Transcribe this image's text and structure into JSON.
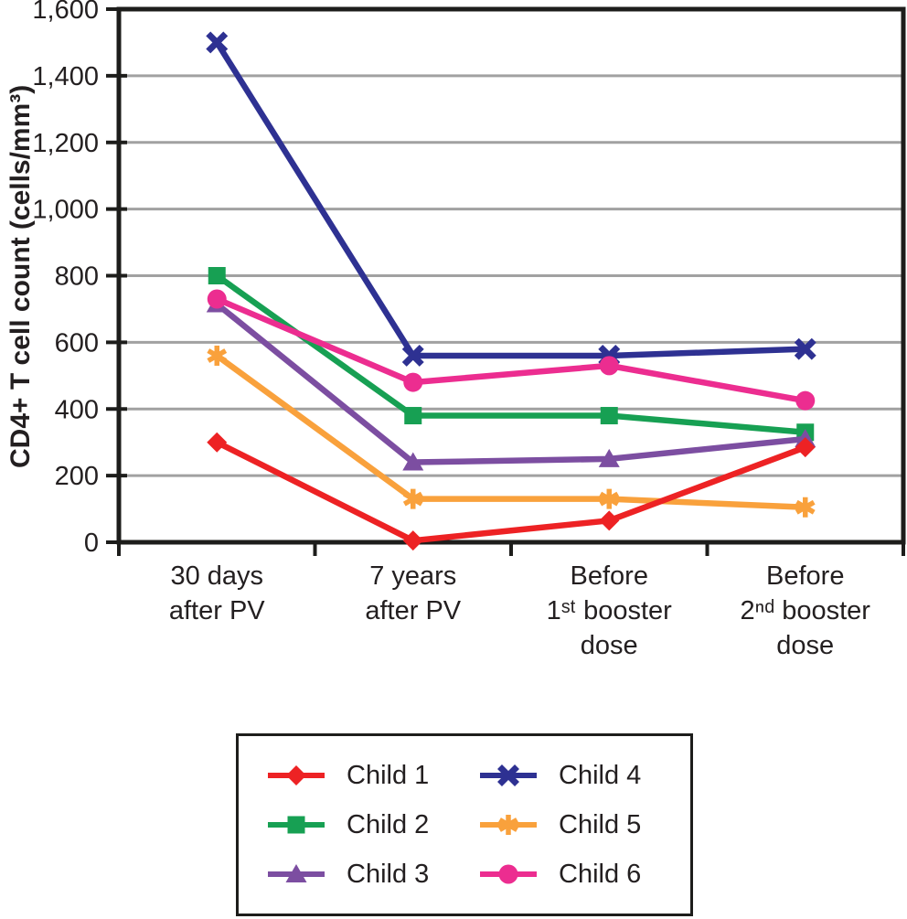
{
  "chart_data": {
    "type": "line",
    "title": "",
    "xlabel": "",
    "ylabel": "CD4+ T cell count (cells/mm³)",
    "ylim": [
      0,
      1600
    ],
    "ytick_step": 200,
    "ytick_labels": [
      "0",
      "200",
      "400",
      "600",
      "800",
      "1,000",
      "1,200",
      "1,400",
      "1,600"
    ],
    "grid": true,
    "legend_position": "bottom boxed, 2 columns",
    "categories": [
      "30 days after PV",
      "7 years after PV",
      "Before 1ˢᵗ booster dose",
      "Before 2ⁿᵈ booster dose"
    ],
    "category_label_lines": [
      [
        "30 days",
        "after PV"
      ],
      [
        "7 years",
        "after PV"
      ],
      [
        "Before",
        "1ˢᵗ booster",
        "dose"
      ],
      [
        "Before",
        "2ⁿᵈ booster",
        "dose"
      ]
    ],
    "series": [
      {
        "name": "Child 1",
        "color": "#ED2224",
        "marker": "diamond",
        "values": [
          300,
          5,
          65,
          285
        ]
      },
      {
        "name": "Child 2",
        "color": "#17A053",
        "marker": "square",
        "values": [
          800,
          380,
          380,
          330
        ]
      },
      {
        "name": "Child 3",
        "color": "#7C4EA1",
        "marker": "triangle",
        "values": [
          715,
          240,
          250,
          310
        ]
      },
      {
        "name": "Child 4",
        "color": "#2E3192",
        "marker": "x",
        "values": [
          1500,
          560,
          560,
          580
        ]
      },
      {
        "name": "Child 5",
        "color": "#F9A13C",
        "marker": "asterisk",
        "values": [
          560,
          130,
          130,
          105
        ]
      },
      {
        "name": "Child 6",
        "color": "#EC2D90",
        "marker": "circle",
        "values": [
          730,
          480,
          530,
          425
        ]
      }
    ],
    "colors": {
      "axis": "#1D1D1B",
      "grid": "#A1A1A1",
      "text": "#231F20",
      "background": "#FFFFFF"
    }
  }
}
